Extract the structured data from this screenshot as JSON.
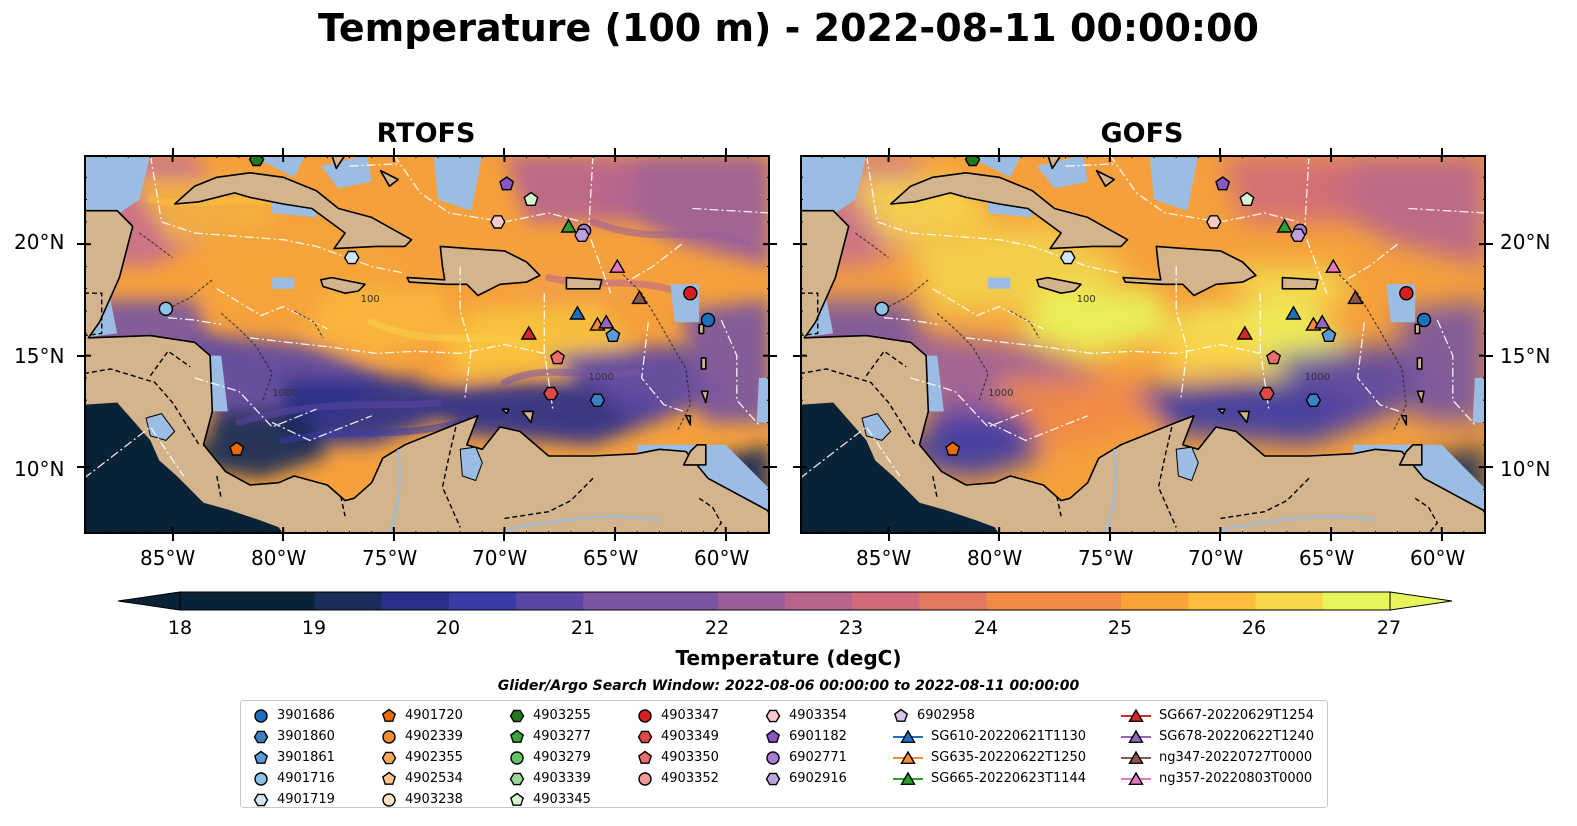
{
  "title": "Temperature (100 m) - 2022-08-11 00:00:00",
  "panels": [
    {
      "title": "RTOFS"
    },
    {
      "title": "GOFS"
    }
  ],
  "axes": {
    "lon_labels": [
      "85°W",
      "80°W",
      "75°W",
      "70°W",
      "65°W",
      "60°W"
    ],
    "lat_labels": [
      "20°N",
      "15°N",
      "10°N"
    ],
    "lon_range": [
      -89,
      -58
    ],
    "lat_range": [
      7,
      24
    ]
  },
  "contour_labels": [
    "100",
    "1000"
  ],
  "colorbar": {
    "label": "Temperature (degC)",
    "ticks": [
      "18",
      "19",
      "20",
      "21",
      "22",
      "23",
      "24",
      "25",
      "26",
      "27"
    ],
    "range": [
      18,
      27
    ],
    "colors": [
      "#0a2235",
      "#1a2d58",
      "#2b2f8a",
      "#3b3aa6",
      "#5b46a4",
      "#7a56a0",
      "#9a5e9a",
      "#b8658e",
      "#d06c79",
      "#e4775f",
      "#f28a45",
      "#f8a23a",
      "#fbbd3b",
      "#f7d94a",
      "#e8f55a"
    ]
  },
  "legend": {
    "title": "Glider/Argo Search Window: 2022-08-06 00:00:00 to 2022-08-11 00:00:00",
    "columns": [
      [
        {
          "label": "3901686",
          "marker": "circle",
          "color": "#1f6fbf"
        },
        {
          "label": "3901860",
          "marker": "hexagon",
          "color": "#3b82c4"
        },
        {
          "label": "3901861",
          "marker": "pentagon",
          "color": "#5b9bd5"
        },
        {
          "label": "4901716",
          "marker": "circle",
          "color": "#8ec1e6"
        },
        {
          "label": "4901719",
          "marker": "hexagon",
          "color": "#cfe6f7"
        }
      ],
      [
        {
          "label": "4901720",
          "marker": "pentagon",
          "color": "#e66c00"
        },
        {
          "label": "4902339",
          "marker": "circle",
          "color": "#f58c30"
        },
        {
          "label": "4902355",
          "marker": "hexagon",
          "color": "#f9a85a"
        },
        {
          "label": "4902534",
          "marker": "pentagon",
          "color": "#fcc58e"
        },
        {
          "label": "4903238",
          "marker": "circle",
          "color": "#fde2c4"
        }
      ],
      [
        {
          "label": "4903255",
          "marker": "hexagon",
          "color": "#1e7a1e"
        },
        {
          "label": "4903277",
          "marker": "pentagon",
          "color": "#3aa33a"
        },
        {
          "label": "4903279",
          "marker": "circle",
          "color": "#66c466"
        },
        {
          "label": "4903339",
          "marker": "hexagon",
          "color": "#9ad99a"
        },
        {
          "label": "4903345",
          "marker": "pentagon",
          "color": "#d4f5cf"
        }
      ],
      [
        {
          "label": "4903347",
          "marker": "circle",
          "color": "#d62020"
        },
        {
          "label": "4903349",
          "marker": "hexagon",
          "color": "#e04848"
        },
        {
          "label": "4903350",
          "marker": "pentagon",
          "color": "#ea6e6e"
        },
        {
          "label": "4903352",
          "marker": "circle",
          "color": "#f29a9a"
        }
      ],
      [
        {
          "label": "4903354",
          "marker": "hexagon",
          "color": "#f9c9c9"
        },
        {
          "label": "6901182",
          "marker": "pentagon",
          "color": "#8a56c4"
        },
        {
          "label": "6902771",
          "marker": "circle",
          "color": "#a47fd2"
        },
        {
          "label": "6902916",
          "marker": "hexagon",
          "color": "#bda3de"
        }
      ],
      [
        {
          "label": "6902958",
          "marker": "pentagon",
          "color": "#d8c6ee"
        },
        {
          "label": "SG610-20220621T1130",
          "marker": "triangle",
          "color": "#1f6fbf"
        },
        {
          "label": "SG635-20220622T1250",
          "marker": "triangle",
          "color": "#f58c30"
        },
        {
          "label": "SG665-20220623T1144",
          "marker": "triangle",
          "color": "#2ca02c"
        }
      ],
      [
        {
          "label": "SG667-20220629T1254",
          "marker": "triangle",
          "color": "#d62728"
        },
        {
          "label": "SG678-20220622T1240",
          "marker": "triangle",
          "color": "#9467bd"
        },
        {
          "label": "ng347-20220727T0000",
          "marker": "triangle",
          "color": "#8c564b"
        },
        {
          "label": "ng357-20220803T0000",
          "marker": "triangle",
          "color": "#e377c2"
        }
      ]
    ]
  },
  "observations": [
    {
      "id": "3901686",
      "lon": -60.8,
      "lat": 16.6
    },
    {
      "id": "3901860",
      "lon": -65.8,
      "lat": 13.0
    },
    {
      "id": "3901861",
      "lon": -65.1,
      "lat": 15.9
    },
    {
      "id": "4901716",
      "lon": -85.3,
      "lat": 17.1
    },
    {
      "id": "4901719",
      "lon": -76.9,
      "lat": 19.4
    },
    {
      "id": "4901720",
      "lon": -82.1,
      "lat": 10.8
    },
    {
      "id": "4903255",
      "lon": -81.2,
      "lat": 23.8
    },
    {
      "id": "4903345",
      "lon": -68.8,
      "lat": 22.0
    },
    {
      "id": "4903347",
      "lon": -61.6,
      "lat": 17.8
    },
    {
      "id": "4903349",
      "lon": -67.9,
      "lat": 13.3
    },
    {
      "id": "4903350",
      "lon": -67.6,
      "lat": 14.9
    },
    {
      "id": "4903354",
      "lon": -70.3,
      "lat": 21.0
    },
    {
      "id": "6901182",
      "lon": -69.9,
      "lat": 22.7
    },
    {
      "id": "6902771",
      "lon": -66.4,
      "lat": 20.6
    },
    {
      "id": "6902916",
      "lon": -66.5,
      "lat": 20.4
    },
    {
      "id": "SG610-20220621T1130",
      "lon": -66.7,
      "lat": 16.9
    },
    {
      "id": "SG635-20220622T1250",
      "lon": -65.8,
      "lat": 16.4
    },
    {
      "id": "SG665-20220623T1144",
      "lon": -67.1,
      "lat": 20.8
    },
    {
      "id": "SG667-20220629T1254",
      "lon": -68.9,
      "lat": 16.0
    },
    {
      "id": "SG678-20220622T1240",
      "lon": -65.4,
      "lat": 16.5
    },
    {
      "id": "ng347-20220727T0000",
      "lon": -63.9,
      "lat": 17.6
    },
    {
      "id": "ng357-20220803T0000",
      "lon": -64.9,
      "lat": 19.0
    }
  ]
}
